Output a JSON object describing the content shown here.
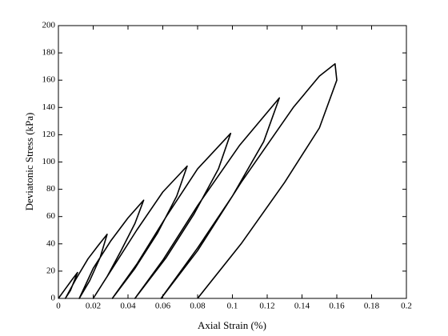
{
  "chart_data": {
    "type": "line",
    "xlabel": "Axial Strain (%)",
    "ylabel": "Deviatonic Stress (kPa)",
    "x": [
      0,
      0.004,
      0.008,
      0.011,
      0.007,
      0.004,
      0.01,
      0.017,
      0.023,
      0.028,
      0.024,
      0.018,
      0.012,
      0.02,
      0.03,
      0.04,
      0.049,
      0.044,
      0.036,
      0.028,
      0.02,
      0.03,
      0.045,
      0.06,
      0.074,
      0.068,
      0.057,
      0.044,
      0.031,
      0.045,
      0.062,
      0.08,
      0.099,
      0.092,
      0.078,
      0.062,
      0.044,
      0.06,
      0.08,
      0.104,
      0.127,
      0.118,
      0.1,
      0.08,
      0.059,
      0.08,
      0.105,
      0.135,
      0.15,
      0.159,
      0.16,
      0.15,
      0.13,
      0.105,
      0.08
    ],
    "values": [
      0,
      7,
      14,
      19,
      6,
      0,
      14,
      29,
      39,
      47,
      30,
      13,
      0,
      22,
      42,
      59,
      72,
      55,
      35,
      16,
      0,
      20,
      50,
      78,
      97,
      75,
      48,
      22,
      0,
      25,
      60,
      95,
      121,
      95,
      62,
      30,
      0,
      28,
      68,
      112,
      147,
      115,
      75,
      37,
      0,
      35,
      85,
      140,
      163,
      172,
      160,
      125,
      85,
      40,
      0
    ],
    "color": "#000000",
    "xlim": [
      0,
      0.2
    ],
    "ylim": [
      0,
      200
    ],
    "xticks": [
      0,
      0.02,
      0.04,
      0.06,
      0.08,
      0.1,
      0.12,
      0.14,
      0.16,
      0.18,
      0.2
    ],
    "yticks": [
      0,
      20,
      40,
      60,
      80,
      100,
      120,
      140,
      160,
      180,
      200
    ]
  }
}
